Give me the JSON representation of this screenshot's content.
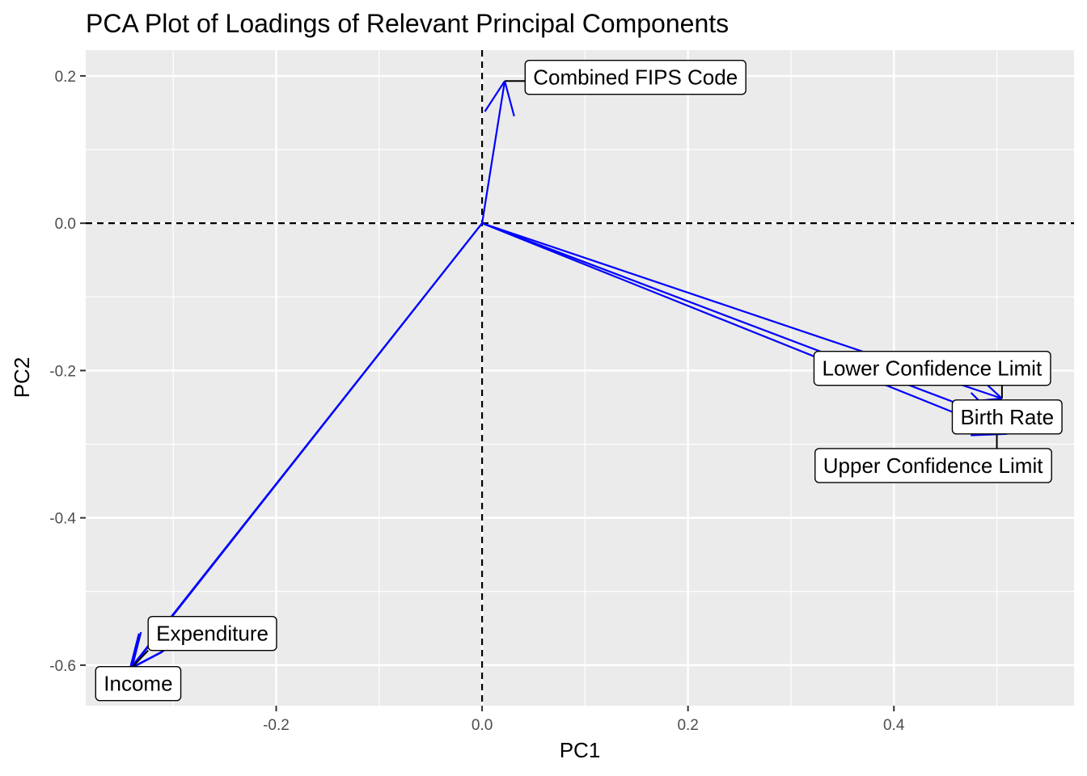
{
  "chart_data": {
    "type": "biplot-loadings",
    "title": "PCA Plot of Loadings of Relevant Principal Components",
    "xlabel": "PC1",
    "ylabel": "PC2",
    "xlim": [
      -0.385,
      0.575
    ],
    "ylim": [
      -0.655,
      0.235
    ],
    "x_ticks": [
      -0.2,
      0.0,
      0.2,
      0.4
    ],
    "x_tick_labels": [
      "-0.2",
      "0.0",
      "0.2",
      "0.4"
    ],
    "y_ticks": [
      0.2,
      0.0,
      -0.2,
      -0.4,
      -0.6
    ],
    "y_tick_labels": [
      "0.2",
      "0.0",
      "-0.2",
      "-0.4",
      "-0.6"
    ],
    "grid": true,
    "reference_lines": {
      "x": 0,
      "y": 0,
      "style": "dashed"
    },
    "arrow_color": "#0000ff",
    "loadings": [
      {
        "label": "Combined FIPS Code",
        "x": 0.022,
        "y": 0.193
      },
      {
        "label": "Lower Confidence Limit",
        "x": 0.505,
        "y": -0.238
      },
      {
        "label": "Birth Rate",
        "x": 0.51,
        "y": -0.286
      },
      {
        "label": "Upper Confidence Limit",
        "x": 0.5,
        "y": -0.265
      },
      {
        "label": "Expenditure",
        "x": -0.34,
        "y": -0.603
      },
      {
        "label": "Income",
        "x": -0.342,
        "y": -0.605
      }
    ],
    "label_positions": [
      {
        "label": "Combined FIPS Code",
        "x": 0.149,
        "y": 0.198
      },
      {
        "label": "Lower Confidence Limit",
        "x": 0.437,
        "y": -0.197
      },
      {
        "label": "Birth Rate",
        "x": 0.51,
        "y": -0.263
      },
      {
        "label": "Upper Confidence Limit",
        "x": 0.438,
        "y": -0.329
      },
      {
        "label": "Expenditure",
        "x": -0.262,
        "y": -0.557
      },
      {
        "label": "Income",
        "x": -0.334,
        "y": -0.625
      }
    ]
  }
}
